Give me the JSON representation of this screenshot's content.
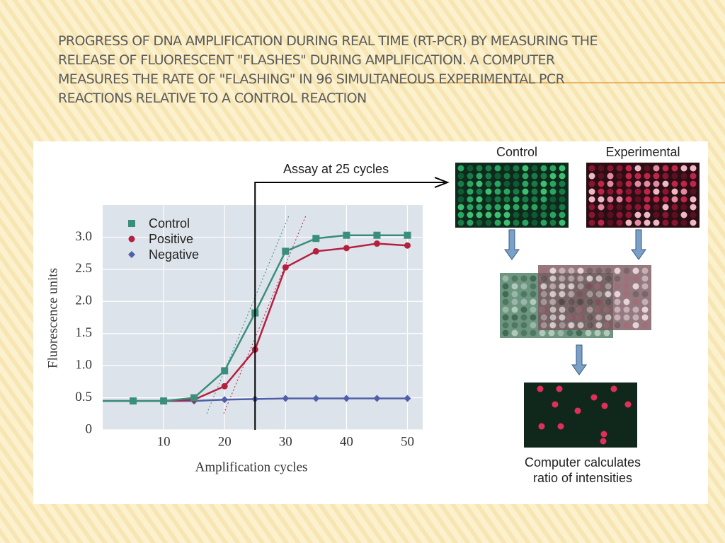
{
  "title_lines": [
    "PROGRESS OF DNA AMPLIFICATION DURING REAL TIME (RT-PCR) BY MEASURING THE",
    "RELEASE OF FLUORESCENT \"FLASHES\" DURING AMPLIFICATION. A COMPUTER",
    "MEASURES THE RATE OF \"FLASHING\" IN 96 SIMULTANEOUS EXPERIMENTAL PCR",
    "REACTIONS RELATIVE TO A CONTROL REACTION"
  ],
  "diagram": {
    "control_label": "Control",
    "experimental_label": "Experimental",
    "result_lines": [
      "Computer calculates",
      "ratio of intensities"
    ]
  },
  "chart_data": {
    "type": "line",
    "annotation": "Assay at 25 cycles",
    "x_label": "Amplification cycles",
    "y_label": "Fluorescence units",
    "x": [
      0,
      5,
      10,
      15,
      20,
      25,
      30,
      35,
      40,
      45,
      50
    ],
    "series": [
      {
        "name": "Control",
        "color": "#3a8f7c",
        "marker": "square",
        "values": [
          0.45,
          0.45,
          0.45,
          0.5,
          0.92,
          1.82,
          2.78,
          2.98,
          3.03,
          3.03,
          3.03
        ]
      },
      {
        "name": "Positive",
        "color": "#b5203f",
        "marker": "circle",
        "values": [
          0.45,
          0.45,
          0.45,
          0.47,
          0.68,
          1.25,
          2.53,
          2.78,
          2.83,
          2.9,
          2.87
        ]
      },
      {
        "name": "Negative",
        "color": "#4f5fa8",
        "marker": "diamond",
        "values": [
          0.45,
          0.45,
          0.45,
          0.45,
          0.47,
          0.48,
          0.49,
          0.49,
          0.49,
          0.49,
          0.49
        ]
      }
    ],
    "xlim": [
      0,
      52.5
    ],
    "xticks": [
      10,
      20,
      30,
      40,
      50
    ],
    "ylim": [
      0,
      3.5
    ],
    "yticks": [
      0,
      {
        "value": 0.5,
        "label": "0.5"
      },
      {
        "value": 1,
        "label": "1.0"
      },
      {
        "value": 1.5,
        "label": "1.5"
      },
      {
        "value": 2,
        "label": "2.0"
      },
      {
        "value": 2.5,
        "label": "2.5"
      },
      {
        "value": 3,
        "label": "3.0"
      }
    ],
    "grid": true,
    "assay_x": 25
  }
}
